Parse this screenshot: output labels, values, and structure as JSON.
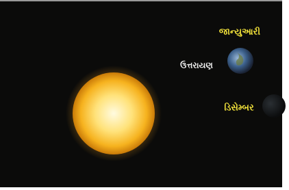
{
  "captions": {
    "january": "જાન્યુઆરી",
    "uttarayan": "ઉત્તરાયણ",
    "december": "ડિસેમ્બર"
  }
}
